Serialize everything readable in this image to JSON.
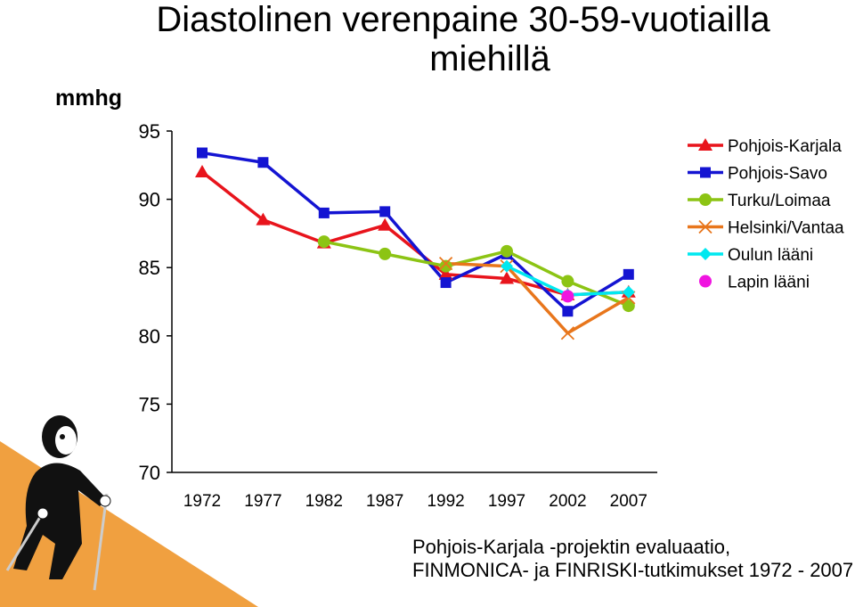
{
  "title_line1": "Diastolinen verenpaine 30-59-vuotiailla",
  "title_line2": "miehillä",
  "unit_label": "mmhg",
  "source_line1": "Pohjois-Karjala -projektin evaluaatio,",
  "source_line2": "FINMONICA- ja FINRISKI-tutkimukset 1972 - 2007",
  "chart_data": {
    "type": "line",
    "title": "Diastolinen verenpaine 30-59-vuotiailla miehillä",
    "ylabel": "mmhg",
    "xlabel": "",
    "ylim": [
      70,
      95
    ],
    "yticks": [
      70,
      75,
      80,
      85,
      90,
      95
    ],
    "categories": [
      "1972",
      "1977",
      "1982",
      "1987",
      "1992",
      "1997",
      "2002",
      "2007"
    ],
    "legend_position": "top-right",
    "series": [
      {
        "name": "Pohjois-Karjala",
        "color": "#e8141c",
        "marker": "triangle",
        "values": [
          92.0,
          88.5,
          86.8,
          88.1,
          84.5,
          84.2,
          83.0,
          83.2
        ]
      },
      {
        "name": "Pohjois-Savo",
        "color": "#1414d2",
        "marker": "square",
        "values": [
          93.4,
          92.7,
          89.0,
          89.1,
          83.9,
          86.0,
          81.8,
          84.5
        ]
      },
      {
        "name": "Turku/Loimaa",
        "color": "#8cc414",
        "marker": "circle",
        "values": [
          null,
          null,
          86.9,
          86.0,
          85.1,
          86.2,
          84.0,
          82.2
        ]
      },
      {
        "name": "Helsinki/Vantaa",
        "color": "#e8761c",
        "marker": "x",
        "values": [
          null,
          null,
          null,
          null,
          85.3,
          85.1,
          80.2,
          82.8
        ]
      },
      {
        "name": "Oulun lääni",
        "color": "#00e8f0",
        "marker": "diamond",
        "values": [
          null,
          null,
          null,
          null,
          null,
          85.1,
          83.0,
          83.2
        ]
      },
      {
        "name": "Lapin lääni",
        "color": "#f014e0",
        "marker": "circle",
        "values": [
          null,
          null,
          null,
          null,
          null,
          null,
          82.9,
          null
        ]
      }
    ]
  }
}
